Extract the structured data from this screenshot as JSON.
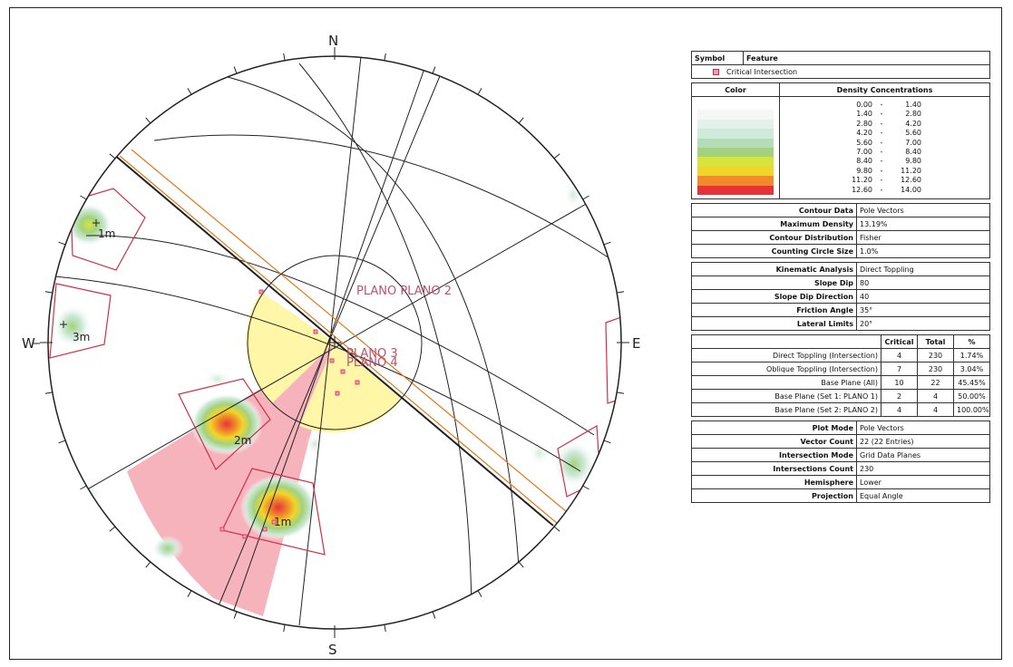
{
  "stereonet": {
    "compass": {
      "north": "N",
      "south": "S",
      "east": "E",
      "west": "W"
    },
    "plane_labels": {
      "plano_plano2": "PLANO PLANO 2",
      "plano3": "PLANO 3",
      "plano4": "PLANO 4"
    },
    "set_labels": {
      "s1": "1m",
      "s2": "2m",
      "s3": "3m",
      "s4": "1m"
    },
    "colors": {
      "critical_zone": "#f4a6b0",
      "daylight_zone": "#fff6a8",
      "great_circle": "#222222",
      "slope_plane": "#e07a1a",
      "window": "#d0304a",
      "critical_symbol": "#d0285a"
    }
  },
  "legend": {
    "symbol_header": "Symbol",
    "feature_header": "Feature",
    "feature_item": "Critical Intersection",
    "color_header": "Color",
    "density_header": "Density Concentrations",
    "density_ranges": [
      {
        "from": "0.00",
        "to": "1.40",
        "color": "#ffffff"
      },
      {
        "from": "1.40",
        "to": "2.80",
        "color": "#f3f8f6"
      },
      {
        "from": "2.80",
        "to": "4.20",
        "color": "#e3f1ea"
      },
      {
        "from": "4.20",
        "to": "5.60",
        "color": "#cfe9da"
      },
      {
        "from": "5.60",
        "to": "7.00",
        "color": "#b5dcb8"
      },
      {
        "from": "7.00",
        "to": "8.40",
        "color": "#a3d27f"
      },
      {
        "from": "8.40",
        "to": "9.80",
        "color": "#d6e43c"
      },
      {
        "from": "9.80",
        "to": "11.20",
        "color": "#f2d52a"
      },
      {
        "from": "11.20",
        "to": "12.60",
        "color": "#f08a2a"
      },
      {
        "from": "12.60",
        "to": "14.00",
        "color": "#e8323a"
      }
    ],
    "contour": [
      {
        "label": "Contour Data",
        "value": "Pole Vectors"
      },
      {
        "label": "Maximum Density",
        "value": "13.19%"
      },
      {
        "label": "Contour Distribution",
        "value": "Fisher"
      },
      {
        "label": "Counting Circle Size",
        "value": "1.0%"
      }
    ],
    "kinematic": [
      {
        "label": "Kinematic Analysis",
        "value": "Direct Toppling"
      },
      {
        "label": "Slope Dip",
        "value": "80"
      },
      {
        "label": "Slope Dip Direction",
        "value": "40"
      },
      {
        "label": "Friction Angle",
        "value": "35°"
      },
      {
        "label": "Lateral Limits",
        "value": "20°"
      }
    ],
    "results_headers": {
      "critical": "Critical",
      "total": "Total",
      "pct": "%"
    },
    "results": [
      {
        "label": "Direct Toppling (Intersection)",
        "critical": "4",
        "total": "230",
        "pct": "1.74%"
      },
      {
        "label": "Oblique Toppling (Intersection)",
        "critical": "7",
        "total": "230",
        "pct": "3.04%"
      },
      {
        "label": "Base Plane (All)",
        "critical": "10",
        "total": "22",
        "pct": "45.45%"
      },
      {
        "label": "Base Plane (Set 1: PLANO 1)",
        "critical": "2",
        "total": "4",
        "pct": "50.00%"
      },
      {
        "label": "Base Plane (Set 2: PLANO 2)",
        "critical": "4",
        "total": "4",
        "pct": "100.00%"
      }
    ],
    "plot": [
      {
        "label": "Plot Mode",
        "value": "Pole Vectors"
      },
      {
        "label": "Vector Count",
        "value": "22 (22 Entries)"
      },
      {
        "label": "Intersection Mode",
        "value": "Grid Data Planes"
      },
      {
        "label": "Intersections Count",
        "value": "230"
      },
      {
        "label": "Hemisphere",
        "value": "Lower"
      },
      {
        "label": "Projection",
        "value": "Equal Angle"
      }
    ]
  }
}
